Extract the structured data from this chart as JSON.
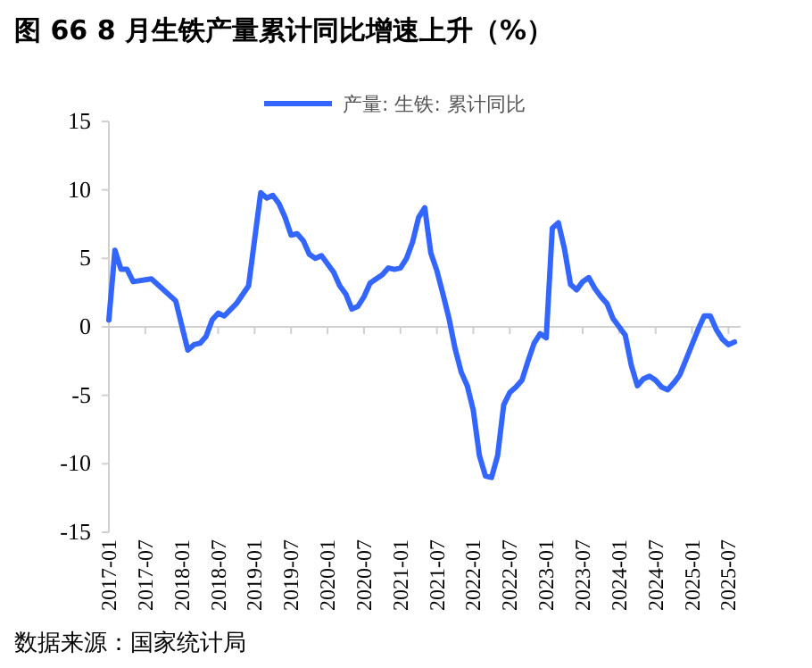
{
  "chart_data": {
    "type": "line",
    "title": "图 66 8 月生铁产量累计同比增速上升（%）",
    "annotations": [
      "数据来源：国家统计局"
    ],
    "xlim": [
      "2017-01",
      "2025-09"
    ],
    "xticks": [
      "2017-01",
      "2017-07",
      "2018-01",
      "2018-07",
      "2019-01",
      "2019-07",
      "2020-01",
      "2020-07",
      "2021-01",
      "2021-07",
      "2022-01",
      "2022-07",
      "2023-01",
      "2023-07",
      "2024-01",
      "2024-07",
      "2025-01",
      "2025-07"
    ],
    "ylim": [
      -15,
      15
    ],
    "yticks": [
      -15,
      -10,
      -5,
      0,
      5,
      10,
      15
    ],
    "legend": "top",
    "grid": false,
    "ref_lines": [
      {
        "axis": "y",
        "value": 0,
        "color": "#d0d0d0"
      }
    ],
    "marker": "none",
    "line_style": "solid",
    "series": [
      {
        "name": "产量: 生铁: 累计同比",
        "color": "#3366ff",
        "x": [
          "2017-01",
          "2017-02",
          "2017-03",
          "2017-04",
          "2017-05",
          "2017-08",
          "2017-12",
          "2018-02",
          "2018-03",
          "2018-04",
          "2018-05",
          "2018-06",
          "2018-07",
          "2018-08",
          "2018-10",
          "2018-12",
          "2019-02",
          "2019-03",
          "2019-04",
          "2019-05",
          "2019-06",
          "2019-07",
          "2019-08",
          "2019-09",
          "2019-10",
          "2019-11",
          "2019-12",
          "2020-02",
          "2020-03",
          "2020-04",
          "2020-05",
          "2020-06",
          "2020-07",
          "2020-08",
          "2020-09",
          "2020-10",
          "2020-11",
          "2020-12",
          "2021-01",
          "2021-02",
          "2021-03",
          "2021-04",
          "2021-05",
          "2021-06",
          "2021-07",
          "2021-08",
          "2021-09",
          "2021-10",
          "2021-11",
          "2021-12",
          "2022-01",
          "2022-02",
          "2022-03",
          "2022-04",
          "2022-05",
          "2022-06",
          "2022-07",
          "2022-08",
          "2022-09",
          "2022-10",
          "2022-11",
          "2022-12",
          "2023-01",
          "2023-02",
          "2023-03",
          "2023-04",
          "2023-05",
          "2023-06",
          "2023-07",
          "2023-08",
          "2023-09",
          "2023-10",
          "2023-11",
          "2023-12",
          "2024-01",
          "2024-02",
          "2024-03",
          "2024-04",
          "2024-05",
          "2024-06",
          "2024-07",
          "2024-08",
          "2024-09",
          "2024-10",
          "2024-11",
          "2024-12",
          "2025-01",
          "2025-02",
          "2025-03",
          "2025-04",
          "2025-05",
          "2025-06",
          "2025-07",
          "2025-08"
        ],
        "values": [
          0.5,
          5.6,
          4.2,
          4.2,
          3.3,
          3.5,
          1.9,
          -1.7,
          -1.3,
          -1.2,
          -0.7,
          0.5,
          1.0,
          0.8,
          1.7,
          3.0,
          9.8,
          9.4,
          9.6,
          9.0,
          8.0,
          6.7,
          6.8,
          6.3,
          5.3,
          5.0,
          5.2,
          4.0,
          3.0,
          2.4,
          1.3,
          1.5,
          2.2,
          3.2,
          3.5,
          3.8,
          4.3,
          4.2,
          4.3,
          5.0,
          6.2,
          8.0,
          8.7,
          5.4,
          4.1,
          2.4,
          0.6,
          -1.6,
          -3.3,
          -4.3,
          -6.1,
          -9.4,
          -10.9,
          -11.0,
          -9.4,
          -5.7,
          -4.8,
          -4.4,
          -3.9,
          -2.5,
          -1.2,
          -0.5,
          -0.8,
          7.2,
          7.6,
          5.7,
          3.1,
          2.7,
          3.3,
          3.6,
          2.8,
          2.2,
          1.7,
          0.6,
          0.0,
          -0.6,
          -2.8,
          -4.3,
          -3.8,
          -3.6,
          -3.9,
          -4.4,
          -4.6,
          -4.1,
          -3.5,
          -2.4,
          -1.3,
          -0.2,
          0.8,
          0.8,
          -0.2,
          -0.9,
          -1.3,
          -1.1
        ]
      }
    ]
  }
}
